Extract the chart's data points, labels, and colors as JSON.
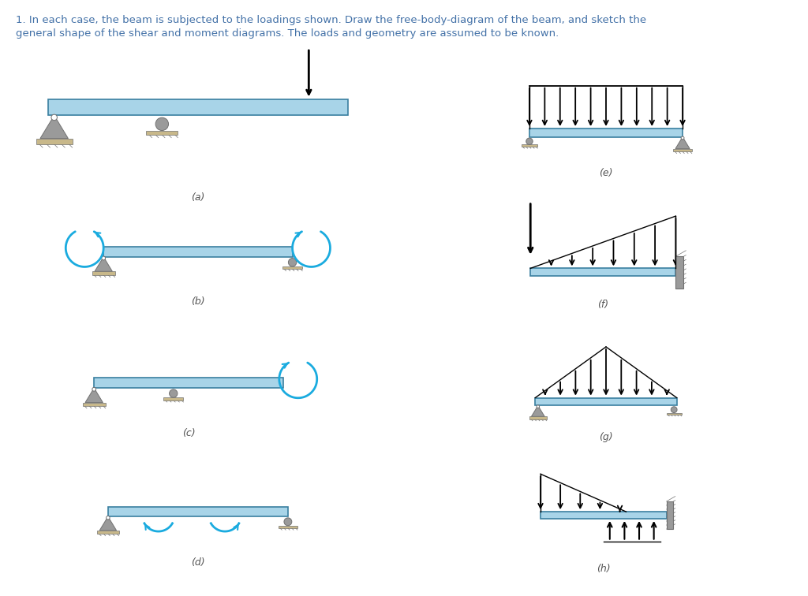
{
  "title_line1": "1. In each case, the beam is subjected to the loadings shown. Draw the free-body-diagram of the beam, and sketch the",
  "title_line2": "general shape of the shear and moment diagrams. The loads and geometry are assumed to be known.",
  "title_color": "#4472a8",
  "beam_color": "#a8d4e8",
  "beam_edge_color": "#3a7fa0",
  "support_gray": "#9a9a9a",
  "support_dark": "#707070",
  "ground_tan": "#c8b88a",
  "arrow_color": "#111111",
  "moment_color": "#1aabdf",
  "label_color": "#555555",
  "label_size": 9,
  "bg_color": "#ffffff",
  "panels": [
    {
      "label": "(a)",
      "col": 0,
      "row": 0
    },
    {
      "label": "(b)",
      "col": 0,
      "row": 1
    },
    {
      "label": "(c)",
      "col": 0,
      "row": 2
    },
    {
      "label": "(d)",
      "col": 0,
      "row": 3
    },
    {
      "label": "(e)",
      "col": 1,
      "row": 0
    },
    {
      "label": "(f)",
      "col": 1,
      "row": 1
    },
    {
      "label": "(g)",
      "col": 1,
      "row": 2
    },
    {
      "label": "(h)",
      "col": 1,
      "row": 3
    }
  ]
}
